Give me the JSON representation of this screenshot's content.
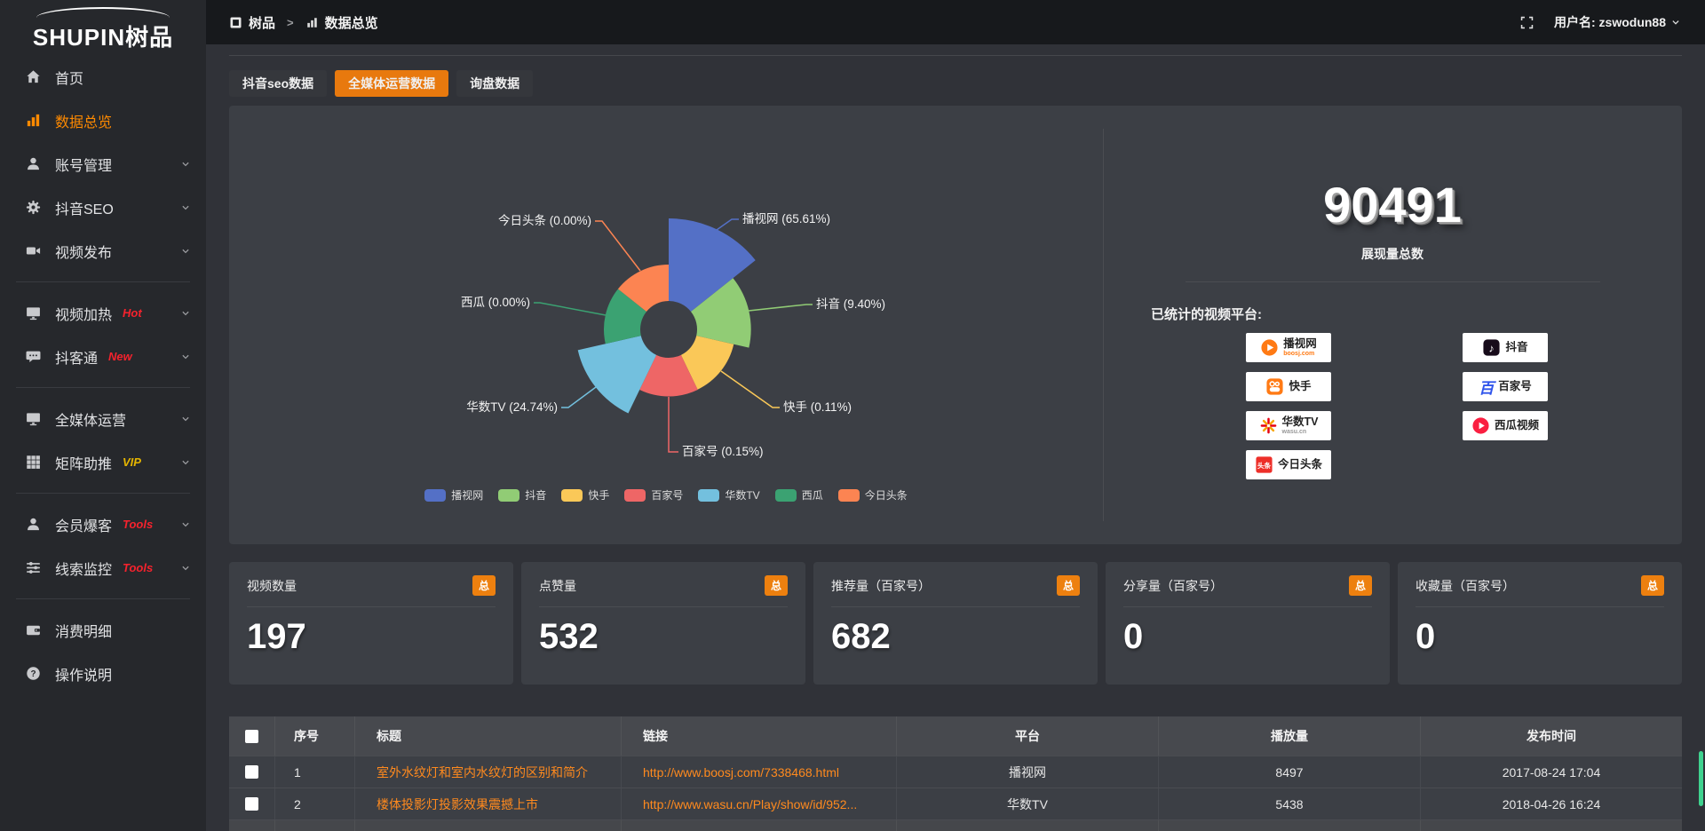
{
  "colors": {
    "accent_orange": "#e8790e",
    "link_orange": "#ff8a1e",
    "badge_red": "#f5222d",
    "vip_yellow": "#e5b500",
    "scrollbar_green": "#3fd28f"
  },
  "sidebar": {
    "logo": "SHUPIN树品",
    "items": [
      {
        "label": "首页",
        "icon": "home-icon"
      },
      {
        "label": "数据总览",
        "icon": "bar-chart-icon",
        "active": true
      },
      {
        "label": "账号管理",
        "icon": "user-icon",
        "expandable": true
      },
      {
        "label": "抖音SEO",
        "icon": "gear-icon",
        "expandable": true
      },
      {
        "label": "视频发布",
        "icon": "video-upload-icon",
        "expandable": true
      },
      {
        "divider": true
      },
      {
        "label": "视频加热",
        "icon": "monitor-icon",
        "badge": "Hot",
        "badge_color": "#f5222d",
        "expandable": true
      },
      {
        "label": "抖客通",
        "icon": "chat-icon",
        "badge": "New",
        "badge_color": "#f5222d",
        "expandable": true
      },
      {
        "divider": true
      },
      {
        "label": "全媒体运营",
        "icon": "screen-icon",
        "expandable": true
      },
      {
        "label": "矩阵助推",
        "icon": "grid-icon",
        "badge": "VIP",
        "badge_color": "#e5b500",
        "expandable": true
      },
      {
        "divider": true
      },
      {
        "label": "会员爆客",
        "icon": "member-icon",
        "badge": "Tools",
        "badge_color": "#f5222d",
        "expandable": true
      },
      {
        "label": "线索监控",
        "icon": "sliders-icon",
        "badge": "Tools",
        "badge_color": "#f5222d",
        "expandable": true
      },
      {
        "divider": true
      },
      {
        "label": "消费明细",
        "icon": "wallet-icon"
      },
      {
        "label": "操作说明",
        "icon": "question-icon"
      }
    ]
  },
  "topbar": {
    "breadcrumb_root": "树品",
    "breadcrumb_separator": ">",
    "breadcrumb_current": "数据总览",
    "user_label": "用户名: zswodun88"
  },
  "tabs": [
    {
      "label": "抖音seo数据",
      "active": false
    },
    {
      "label": "全媒体运营数据",
      "active": true
    },
    {
      "label": "询盘数据",
      "active": false
    }
  ],
  "chart_data": {
    "type": "pie",
    "variant": "rose-donut",
    "legend_position": "bottom",
    "series": [
      {
        "name": "播视网",
        "value_pct": 65.61,
        "label": "播视网 (65.61%)",
        "color": "#5470c6"
      },
      {
        "name": "抖音",
        "value_pct": 9.4,
        "label": "抖音 (9.40%)",
        "color": "#91cc75"
      },
      {
        "name": "快手",
        "value_pct": 0.11,
        "label": "快手 (0.11%)",
        "color": "#fac858"
      },
      {
        "name": "百家号",
        "value_pct": 0.15,
        "label": "百家号 (0.15%)",
        "color": "#ee6666"
      },
      {
        "name": "华数TV",
        "value_pct": 24.74,
        "label": "华数TV (24.74%)",
        "color": "#73c0de"
      },
      {
        "name": "西瓜",
        "value_pct": 0.0,
        "label": "西瓜 (0.00%)",
        "color": "#3ba272"
      },
      {
        "name": "今日头条",
        "value_pct": 0.0,
        "label": "今日头条 (0.00%)",
        "color": "#fc8452"
      }
    ]
  },
  "summary": {
    "total_value": "90491",
    "total_label": "展现量总数",
    "platforms_title": "已统计的视频平台:",
    "platforms": [
      {
        "name": "播视网",
        "sub": "boosj.com",
        "sub_color": "#ff7a14",
        "icon": "boosj-logo"
      },
      {
        "name": "抖音",
        "icon": "douyin-logo"
      },
      {
        "name": "快手",
        "icon": "kuaishou-logo"
      },
      {
        "name": "百家号",
        "icon": "baijiahao-logo"
      },
      {
        "name": "华数TV",
        "sub": "wasu.cn",
        "sub_color": "#999999",
        "icon": "wasu-logo"
      },
      {
        "name": "西瓜视频",
        "icon": "xigua-logo"
      },
      {
        "name": "今日头条",
        "icon": "toutiao-logo"
      }
    ]
  },
  "stat_cards": [
    {
      "title": "视频数量",
      "badge": "总",
      "value": "197"
    },
    {
      "title": "点赞量",
      "badge": "总",
      "value": "532"
    },
    {
      "title": "推荐量（百家号）",
      "badge": "总",
      "value": "682"
    },
    {
      "title": "分享量（百家号）",
      "badge": "总",
      "value": "0"
    },
    {
      "title": "收藏量（百家号）",
      "badge": "总",
      "value": "0"
    }
  ],
  "table": {
    "headers": [
      "序号",
      "标题",
      "链接",
      "平台",
      "播放量",
      "发布时间"
    ],
    "rows": [
      {
        "index": "1",
        "title": "室外水纹灯和室内水纹灯的区别和简介",
        "link": "http://www.boosj.com/7338468.html",
        "platform": "播视网",
        "plays": "8497",
        "published": "2017-08-24 17:04"
      },
      {
        "index": "2",
        "title": "楼体投影灯投影效果震撼上市",
        "link": "http://www.wasu.cn/Play/show/id/952...",
        "platform": "华数TV",
        "plays": "5438",
        "published": "2018-04-26 16:24"
      }
    ]
  }
}
